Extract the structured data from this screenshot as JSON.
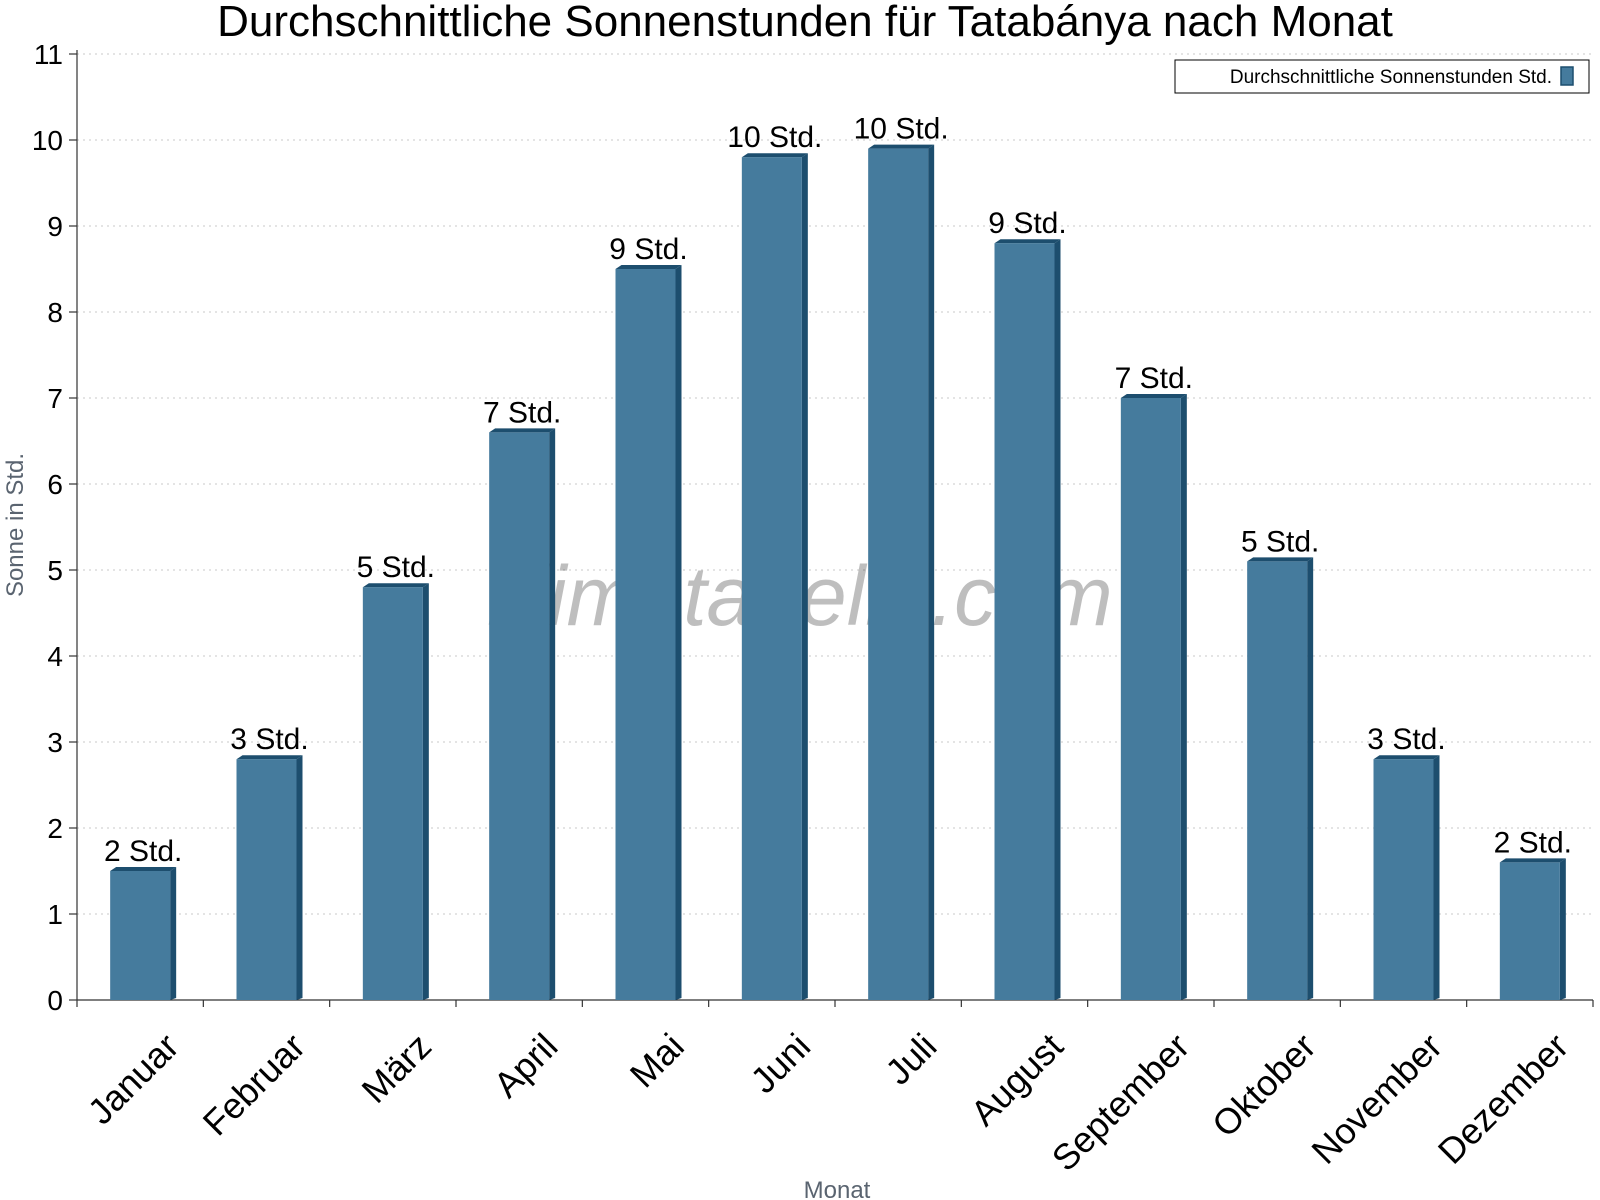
{
  "chart_data": {
    "type": "bar",
    "title": "Durchschnittliche Sonnenstunden für Tatabánya nach Monat",
    "xlabel": "Monat",
    "ylabel": "Sonne in Std.",
    "ylim": [
      0,
      11
    ],
    "yticks": [
      "0",
      "1",
      "2",
      "3",
      "4",
      "5",
      "6",
      "7",
      "8",
      "9",
      "10",
      "11"
    ],
    "grid": true,
    "legend_position": "top-right",
    "categories": [
      "Januar",
      "Februar",
      "März",
      "April",
      "Mai",
      "Juni",
      "Juli",
      "August",
      "September",
      "Oktober",
      "November",
      "Dezember"
    ],
    "series": [
      {
        "name": "Durchschnittliche Sonnenstunden Std.",
        "values": [
          1.5,
          2.8,
          4.8,
          6.6,
          8.5,
          9.8,
          9.9,
          8.8,
          7.0,
          5.1,
          2.8,
          1.6
        ],
        "labels": [
          "2 Std.",
          "3 Std.",
          "5 Std.",
          "7 Std.",
          "9 Std.",
          "10 Std.",
          "10 Std.",
          "9 Std.",
          "7 Std.",
          "5 Std.",
          "3 Std.",
          "2 Std."
        ],
        "color": "#457b9d"
      }
    ],
    "watermark": "klimatabelle.com"
  },
  "colors": {
    "bar_front": "#457b9d",
    "bar_side": "#1d4e6e"
  }
}
